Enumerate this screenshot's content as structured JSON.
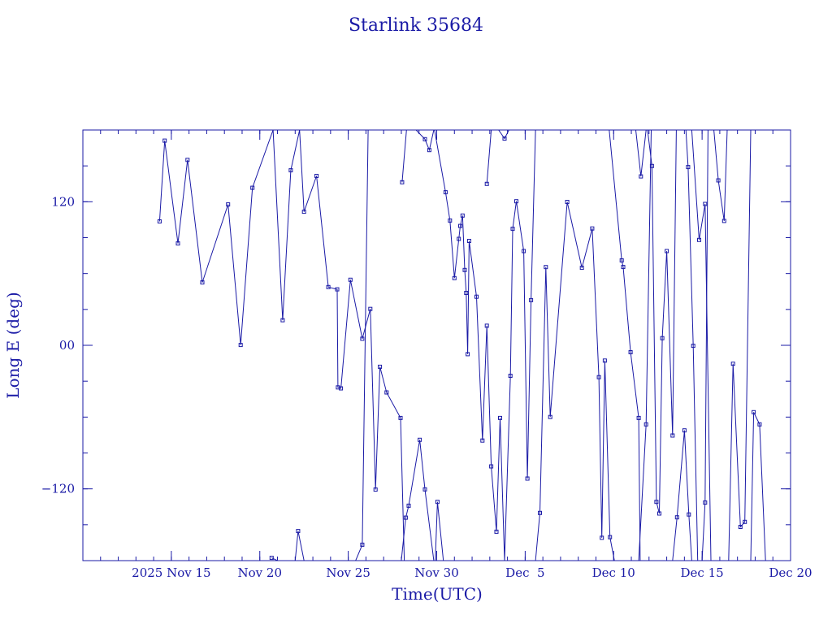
{
  "chart_data": {
    "type": "line",
    "title": "Starlink 35684",
    "xlabel": "Time(UTC)",
    "ylabel": "Long E (deg)",
    "colors": {
      "axis": "#1a1aa6",
      "series": "#1a1aa6",
      "background": "#ffffff"
    },
    "x_unit": "date (UTC), 2025",
    "xlim": [
      "2025-11-10",
      "2025-12-20"
    ],
    "ylim": [
      -180,
      180
    ],
    "x_ticks": [
      {
        "date": "2025-11-15",
        "label": "2025 Nov 15"
      },
      {
        "date": "2025-11-20",
        "label": "Nov 20"
      },
      {
        "date": "2025-11-25",
        "label": "Nov 25"
      },
      {
        "date": "2025-11-30",
        "label": "Nov 30"
      },
      {
        "date": "2025-12-05",
        "label": "Dec  5"
      },
      {
        "date": "2025-12-10",
        "label": "Dec 10"
      },
      {
        "date": "2025-12-15",
        "label": "Dec 15"
      },
      {
        "date": "2025-12-20",
        "label": "Dec 20"
      }
    ],
    "y_ticks": [
      {
        "value": 120,
        "label": "120"
      },
      {
        "value": 0,
        "label": "00"
      },
      {
        "value": -120,
        "label": "−120"
      }
    ],
    "x_minor_step_days": 1,
    "y_minor_step": 30,
    "grid": false,
    "legend": "none",
    "series": [
      {
        "points": [
          [
            "2025-11-14 08:00",
            103.6
          ],
          [
            "2025-11-14 15:00",
            171.1
          ],
          [
            "2025-11-15 09:00",
            85.2
          ],
          [
            "2025-11-15 22:00",
            155.0
          ],
          [
            "2025-11-16 18:00",
            52.6
          ],
          [
            "2025-11-18 05:00",
            117.8
          ],
          [
            "2025-11-18 22:00",
            0.3
          ],
          [
            "2025-11-19 14:00",
            131.7
          ],
          [
            "2025-11-20 18:00",
            180.0
          ],
          [
            "2025-11-21 07:00",
            21.0
          ],
          [
            "2025-11-21 18:00",
            146.3
          ],
          [
            "2025-11-22 06:00",
            180.0
          ],
          [
            "2025-11-22 12:00",
            111.7
          ],
          [
            "2025-11-23 05:00",
            141.6
          ],
          [
            "2025-11-23 21:00",
            48.7
          ],
          [
            "2025-11-24 09:00",
            46.8
          ],
          [
            "2025-11-24 10:00",
            -35.2
          ],
          [
            "2025-11-24 14:00",
            -36.0
          ],
          [
            "2025-11-25 03:00",
            54.8
          ],
          [
            "2025-11-25 19:00",
            5.5
          ],
          [
            "2025-11-26 06:00",
            30.4
          ],
          [
            "2025-11-26 13:00",
            -120.6
          ],
          [
            "2025-11-26 19:00",
            -17.9
          ],
          [
            "2025-11-27 04:00",
            -39.4
          ],
          [
            "2025-11-27 23:00",
            -60.7
          ],
          [
            "2025-11-28 04:00",
            -180.0
          ]
        ]
      },
      {
        "points": [
          [
            "2025-11-20 16:00",
            -177.7
          ],
          [
            "2025-11-21 00:00",
            -180.0
          ]
        ]
      },
      {
        "points": [
          [
            "2025-11-22 00:00",
            -180.0
          ],
          [
            "2025-11-22 04:00",
            -155.3
          ],
          [
            "2025-11-22 12:00",
            -180.0
          ]
        ]
      },
      {
        "points": [
          [
            "2025-11-25 10:00",
            -180.0
          ],
          [
            "2025-11-25 19:00",
            -166.7
          ],
          [
            "2025-11-26 03:00",
            180.0
          ]
        ]
      },
      {
        "points": [
          [
            "2025-11-28 00:00",
            -180.0
          ],
          [
            "2025-11-28 06:00",
            -144.1
          ],
          [
            "2025-11-28 10:00",
            -134.1
          ],
          [
            "2025-11-29 01:00",
            -79.0
          ],
          [
            "2025-11-29 08:00",
            -120.4
          ],
          [
            "2025-11-29 20:00",
            -180.0
          ]
        ]
      },
      {
        "points": [
          [
            "2025-11-28 01:00",
            136.3
          ],
          [
            "2025-11-28 07:00",
            180.0
          ]
        ]
      },
      {
        "points": [
          [
            "2025-11-28 20:00",
            180.0
          ],
          [
            "2025-11-29 08:00",
            172.3
          ],
          [
            "2025-11-29 14:00",
            163.2
          ],
          [
            "2025-11-29 20:00",
            180.0
          ]
        ]
      },
      {
        "points": [
          [
            "2025-11-29 22:00",
            -180.0
          ],
          [
            "2025-11-30 01:00",
            -130.9
          ],
          [
            "2025-11-30 09:00",
            -180.0
          ]
        ]
      },
      {
        "points": [
          [
            "2025-11-29 21:00",
            180.0
          ],
          [
            "2025-11-30 12:00",
            128.0
          ],
          [
            "2025-11-30 18:00",
            104.3
          ],
          [
            "2025-12-01 00:00",
            56.2
          ],
          [
            "2025-12-01 06:00",
            89.0
          ],
          [
            "2025-12-01 08:00",
            99.8
          ],
          [
            "2025-12-01 11:00",
            108.5
          ],
          [
            "2025-12-01 14:00",
            63.0
          ],
          [
            "2025-12-01 16:00",
            43.8
          ],
          [
            "2025-12-01 18:00",
            -7.4
          ],
          [
            "2025-12-01 20:00",
            87.3
          ],
          [
            "2025-12-02 06:00",
            40.6
          ],
          [
            "2025-12-02 14:00",
            -79.6
          ],
          [
            "2025-12-02 20:00",
            16.4
          ],
          [
            "2025-12-03 02:00",
            -101.2
          ],
          [
            "2025-12-03 09:00",
            -155.8
          ],
          [
            "2025-12-03 14:00",
            -60.7
          ],
          [
            "2025-12-03 20:00",
            -180.0
          ]
        ]
      },
      {
        "points": [
          [
            "2025-12-02 20:00",
            135.0
          ],
          [
            "2025-12-03 02:00",
            180.0
          ]
        ]
      },
      {
        "points": [
          [
            "2025-12-03 12:00",
            180.0
          ],
          [
            "2025-12-03 20:00",
            172.9
          ],
          [
            "2025-12-04 02:00",
            180.0
          ]
        ]
      },
      {
        "points": [
          [
            "2025-12-03 20:00",
            -180.0
          ],
          [
            "2025-12-04 04:00",
            -25.5
          ],
          [
            "2025-12-04 07:00",
            97.4
          ],
          [
            "2025-12-04 12:00",
            120.4
          ],
          [
            "2025-12-04 22:00",
            78.8
          ],
          [
            "2025-12-05 03:00",
            -111.4
          ],
          [
            "2025-12-05 08:00",
            37.8
          ],
          [
            "2025-12-05 14:00",
            180.0
          ]
        ]
      },
      {
        "points": [
          [
            "2025-12-05 14:00",
            -180.0
          ],
          [
            "2025-12-05 20:00",
            -140.1
          ],
          [
            "2025-12-06 04:00",
            65.4
          ],
          [
            "2025-12-06 10:00",
            -59.9
          ],
          [
            "2025-12-07 09:00",
            119.9
          ],
          [
            "2025-12-08 05:00",
            64.8
          ],
          [
            "2025-12-08 19:00",
            97.7
          ],
          [
            "2025-12-09 04:00",
            -26.6
          ],
          [
            "2025-12-09 08:00",
            -160.9
          ],
          [
            "2025-12-09 12:00",
            -12.8
          ],
          [
            "2025-12-09 19:00",
            -160.4
          ],
          [
            "2025-12-10 01:00",
            -180.0
          ]
        ]
      },
      {
        "points": [
          [
            "2025-12-09 18:00",
            180.0
          ],
          [
            "2025-12-10 11:00",
            71.0
          ],
          [
            "2025-12-10 13:00",
            65.5
          ],
          [
            "2025-12-10 23:00",
            -5.8
          ],
          [
            "2025-12-11 10:00",
            -60.7
          ],
          [
            "2025-12-11 12:00",
            -180.0
          ]
        ]
      },
      {
        "points": [
          [
            "2025-12-11 06:00",
            180.0
          ],
          [
            "2025-12-11 13:00",
            141.2
          ],
          [
            "2025-12-11 20:00",
            180.0
          ]
        ]
      },
      {
        "points": [
          [
            "2025-12-11 10:00",
            -180.0
          ],
          [
            "2025-12-11 20:00",
            -66.1
          ],
          [
            "2025-12-12 03:00",
            180.0
          ]
        ]
      },
      {
        "points": [
          [
            "2025-12-11 22:00",
            180.0
          ],
          [
            "2025-12-12 04:00",
            149.9
          ],
          [
            "2025-12-12 10:00",
            -130.9
          ],
          [
            "2025-12-12 14:00",
            -140.6
          ],
          [
            "2025-12-12 18:00",
            6.0
          ],
          [
            "2025-12-13 00:00",
            78.8
          ],
          [
            "2025-12-13 08:00",
            -75.4
          ],
          [
            "2025-12-13 13:00",
            180.0
          ]
        ]
      },
      {
        "points": [
          [
            "2025-12-13 08:00",
            -180.0
          ],
          [
            "2025-12-13 14:00",
            -143.8
          ],
          [
            "2025-12-14 00:00",
            -71.1
          ],
          [
            "2025-12-14 06:00",
            -141.4
          ],
          [
            "2025-12-14 10:00",
            -180.0
          ]
        ]
      },
      {
        "points": [
          [
            "2025-12-14 02:00",
            180.0
          ],
          [
            "2025-12-14 05:00",
            149.0
          ],
          [
            "2025-12-14 12:00",
            -0.4
          ],
          [
            "2025-12-14 18:00",
            -180.0
          ]
        ]
      },
      {
        "points": [
          [
            "2025-12-14 10:00",
            180.0
          ],
          [
            "2025-12-14 20:00",
            88.1
          ],
          [
            "2025-12-15 04:00",
            118.2
          ],
          [
            "2025-12-15 12:00",
            -180.0
          ]
        ]
      },
      {
        "points": [
          [
            "2025-12-15 00:00",
            -180.0
          ],
          [
            "2025-12-15 04:00",
            -131.4
          ],
          [
            "2025-12-15 08:00",
            180.0
          ]
        ]
      },
      {
        "points": [
          [
            "2025-12-15 16:00",
            180.0
          ],
          [
            "2025-12-15 22:00",
            137.9
          ],
          [
            "2025-12-16 06:00",
            104.0
          ],
          [
            "2025-12-16 10:00",
            180.0
          ]
        ]
      },
      {
        "points": [
          [
            "2025-12-16 12:00",
            -180.0
          ],
          [
            "2025-12-16 18:00",
            -15.4
          ],
          [
            "2025-12-17 04:00",
            -151.8
          ],
          [
            "2025-12-17 10:00",
            -147.6
          ],
          [
            "2025-12-17 18:00",
            180.0
          ]
        ]
      },
      {
        "points": [
          [
            "2025-12-17 18:00",
            -180.0
          ],
          [
            "2025-12-17 22:00",
            -55.9
          ],
          [
            "2025-12-18 06:00",
            -66.1
          ],
          [
            "2025-12-18 14:00",
            -180.0
          ]
        ]
      }
    ]
  }
}
